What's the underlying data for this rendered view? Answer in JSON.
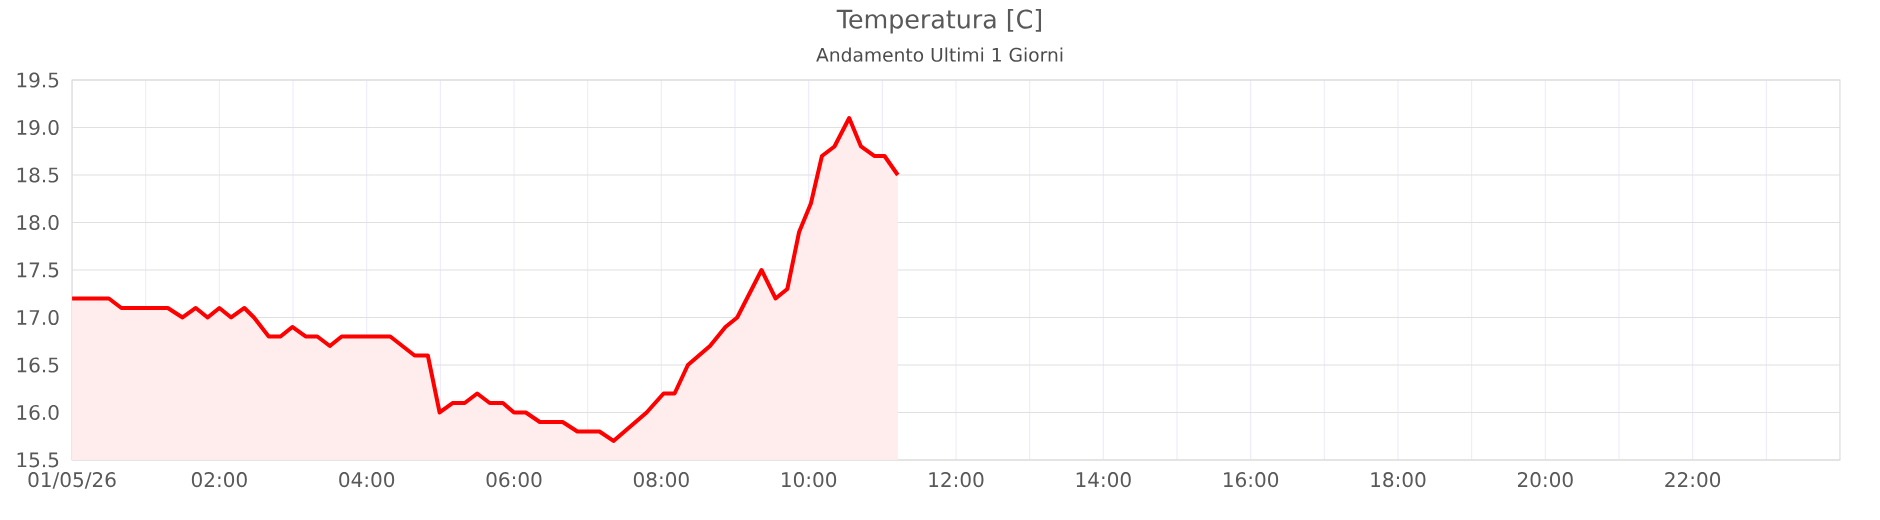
{
  "chart_data": {
    "type": "area",
    "title": "Temperatura [C]",
    "subtitle": "Andamento Ultimi 1 Giorni",
    "x": [
      0,
      0.5,
      0.67,
      1.3,
      1.5,
      1.68,
      1.84,
      2.0,
      2.16,
      2.34,
      2.47,
      2.67,
      2.83,
      2.99,
      3.17,
      3.33,
      3.5,
      3.66,
      4.32,
      4.65,
      4.83,
      4.99,
      5.17,
      5.33,
      5.5,
      5.67,
      5.85,
      6.0,
      6.16,
      6.35,
      6.66,
      6.86,
      7.16,
      7.35,
      7.8,
      8.03,
      8.18,
      8.36,
      8.66,
      8.87,
      9.03,
      9.36,
      9.55,
      9.71,
      9.87,
      10.03,
      10.18,
      10.35,
      10.55,
      10.71,
      10.89,
      11.03,
      11.21
    ],
    "series": [
      {
        "color": "#ff0000",
        "values": [
          17.2,
          17.2,
          17.1,
          17.1,
          17.0,
          17.1,
          17.0,
          17.1,
          17.0,
          17.1,
          17.0,
          16.8,
          16.8,
          16.9,
          16.8,
          16.8,
          16.7,
          16.8,
          16.8,
          16.6,
          16.6,
          16.0,
          16.1,
          16.1,
          16.2,
          16.1,
          16.1,
          16.0,
          16.0,
          15.9,
          15.9,
          15.8,
          15.8,
          15.7,
          16.0,
          16.2,
          16.2,
          16.5,
          16.7,
          16.9,
          17.0,
          17.5,
          17.2,
          17.3,
          17.9,
          18.2,
          18.7,
          18.8,
          19.1,
          18.8,
          18.7,
          18.7,
          18.5
        ]
      }
    ],
    "xlim": [
      0,
      24
    ],
    "xticks": [
      {
        "value": 0,
        "label": "01/05/26"
      },
      {
        "value": 1,
        "label": null
      },
      {
        "value": 2,
        "label": "02:00"
      },
      {
        "value": 3,
        "label": null
      },
      {
        "value": 4,
        "label": "04:00"
      },
      {
        "value": 5,
        "label": null
      },
      {
        "value": 6,
        "label": "06:00"
      },
      {
        "value": 7,
        "label": null
      },
      {
        "value": 8,
        "label": "08:00"
      },
      {
        "value": 9,
        "label": null
      },
      {
        "value": 10,
        "label": "10:00"
      },
      {
        "value": 11,
        "label": null
      },
      {
        "value": 12,
        "label": "12:00"
      },
      {
        "value": 13,
        "label": null
      },
      {
        "value": 14,
        "label": "14:00"
      },
      {
        "value": 15,
        "label": null
      },
      {
        "value": 16,
        "label": "16:00"
      },
      {
        "value": 17,
        "label": null
      },
      {
        "value": 18,
        "label": "18:00"
      },
      {
        "value": 19,
        "label": null
      },
      {
        "value": 20,
        "label": "20:00"
      },
      {
        "value": 21,
        "label": null
      },
      {
        "value": 22,
        "label": "22:00"
      },
      {
        "value": 23,
        "label": null
      }
    ],
    "ylim": [
      15.5,
      19.5
    ],
    "yticks": [
      15.5,
      {
        "value": 16,
        "label": "16.0"
      },
      16.5,
      {
        "value": 17,
        "label": "17.0"
      },
      17.5,
      {
        "value": 18,
        "label": "18.0"
      },
      18.5,
      {
        "value": 19,
        "label": "19.0"
      },
      19.5
    ],
    "grid": true,
    "marker": "none",
    "line_style": "solid"
  }
}
